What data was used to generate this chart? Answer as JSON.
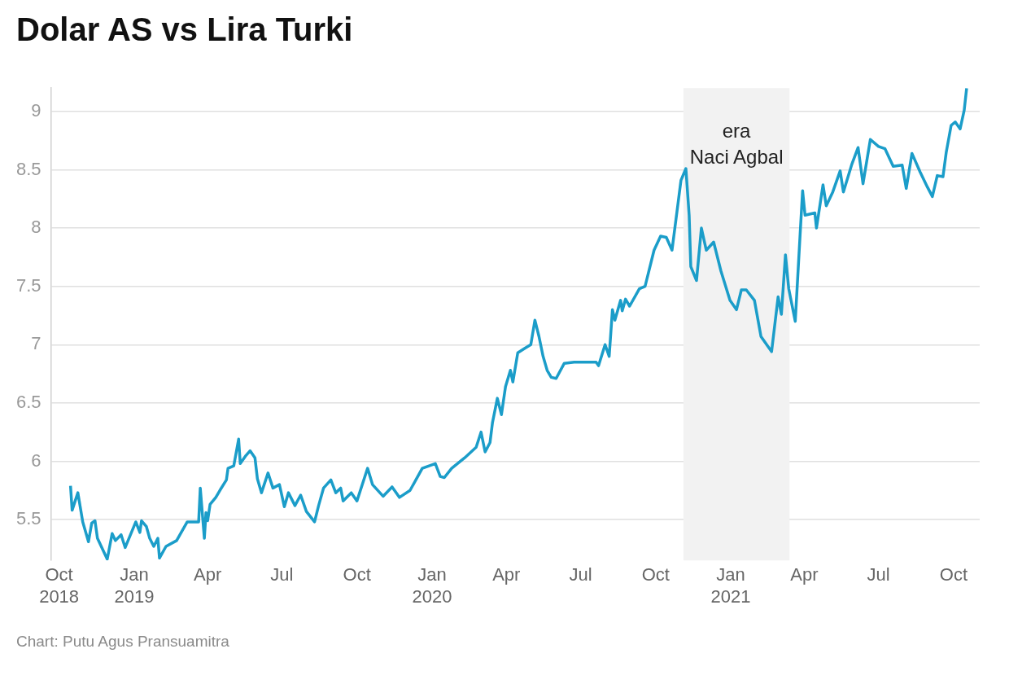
{
  "chart_data": {
    "type": "line",
    "title": "Dolar AS vs Lira Turki",
    "annotations": [
      "Chart: Putu Agus Pransuamitra"
    ],
    "x": [
      "2018-10-15",
      "2018-10-17",
      "2018-10-24",
      "2018-10-30",
      "2018-11-06",
      "2018-11-10",
      "2018-11-14",
      "2018-11-17",
      "2018-11-29",
      "2018-12-05",
      "2018-12-09",
      "2018-12-16",
      "2018-12-21",
      "2019-01-03",
      "2019-01-08",
      "2019-01-10",
      "2019-01-16",
      "2019-01-20",
      "2019-01-25",
      "2019-01-30",
      "2019-02-01",
      "2019-02-09",
      "2019-02-22",
      "2019-03-07",
      "2019-03-21",
      "2019-03-23",
      "2019-03-28",
      "2019-03-30",
      "2019-04-01",
      "2019-04-04",
      "2019-04-11",
      "2019-04-16",
      "2019-04-24",
      "2019-04-26",
      "2019-05-03",
      "2019-05-09",
      "2019-05-11",
      "2019-05-18",
      "2019-05-23",
      "2019-05-29",
      "2019-06-01",
      "2019-06-06",
      "2019-06-14",
      "2019-06-20",
      "2019-06-28",
      "2019-07-04",
      "2019-07-09",
      "2019-07-17",
      "2019-07-24",
      "2019-07-31",
      "2019-08-10",
      "2019-08-15",
      "2019-08-21",
      "2019-08-30",
      "2019-09-05",
      "2019-09-11",
      "2019-09-14",
      "2019-09-24",
      "2019-10-01",
      "2019-10-14",
      "2019-10-20",
      "2019-11-02",
      "2019-11-13",
      "2019-11-22",
      "2019-12-05",
      "2019-12-20",
      "2020-01-05",
      "2020-01-11",
      "2020-01-16",
      "2020-01-25",
      "2020-02-10",
      "2020-02-24",
      "2020-03-01",
      "2020-03-06",
      "2020-03-12",
      "2020-03-15",
      "2020-03-21",
      "2020-03-26",
      "2020-03-31",
      "2020-04-06",
      "2020-04-09",
      "2020-04-15",
      "2020-04-24",
      "2020-05-01",
      "2020-05-06",
      "2020-05-11",
      "2020-05-16",
      "2020-05-21",
      "2020-05-26",
      "2020-06-01",
      "2020-06-11",
      "2020-06-23",
      "2020-07-20",
      "2020-07-23",
      "2020-07-31",
      "2020-08-05",
      "2020-08-09",
      "2020-08-12",
      "2020-08-19",
      "2020-08-21",
      "2020-08-25",
      "2020-08-30",
      "2020-09-11",
      "2020-09-18",
      "2020-09-29",
      "2020-10-07",
      "2020-10-14",
      "2020-10-21",
      "2020-11-01",
      "2020-11-07",
      "2020-11-11",
      "2020-11-13",
      "2020-11-20",
      "2020-11-26",
      "2020-12-02",
      "2020-12-11",
      "2020-12-20",
      "2020-12-31",
      "2021-01-08",
      "2021-01-14",
      "2021-01-20",
      "2021-01-30",
      "2021-02-07",
      "2021-02-14",
      "2021-02-20",
      "2021-02-28",
      "2021-03-04",
      "2021-03-09",
      "2021-03-13",
      "2021-03-21",
      "2021-03-27",
      "2021-03-30",
      "2021-04-02",
      "2021-04-14",
      "2021-04-16",
      "2021-04-24",
      "2021-04-28",
      "2021-05-06",
      "2021-05-15",
      "2021-05-19",
      "2021-05-29",
      "2021-06-06",
      "2021-06-12",
      "2021-06-21",
      "2021-07-01",
      "2021-07-09",
      "2021-07-19",
      "2021-07-30",
      "2021-08-04",
      "2021-08-11",
      "2021-08-21",
      "2021-08-30",
      "2021-09-05",
      "2021-09-11",
      "2021-09-18",
      "2021-09-22",
      "2021-09-28",
      "2021-10-03",
      "2021-10-09",
      "2021-10-14",
      "2021-10-17"
    ],
    "series": [
      {
        "color": "#1b9dc9",
        "values": [
          5.79,
          5.58,
          5.73,
          5.48,
          5.31,
          5.47,
          5.49,
          5.34,
          5.16,
          5.38,
          5.32,
          5.37,
          5.26,
          5.48,
          5.39,
          5.49,
          5.44,
          5.34,
          5.27,
          5.34,
          5.17,
          5.27,
          5.32,
          5.48,
          5.48,
          5.77,
          5.34,
          5.56,
          5.49,
          5.63,
          5.69,
          5.75,
          5.84,
          5.94,
          5.96,
          6.19,
          5.98,
          6.05,
          6.09,
          6.03,
          5.85,
          5.73,
          5.9,
          5.77,
          5.8,
          5.61,
          5.73,
          5.62,
          5.71,
          5.57,
          5.48,
          5.62,
          5.77,
          5.84,
          5.73,
          5.77,
          5.66,
          5.73,
          5.66,
          5.94,
          5.8,
          5.7,
          5.78,
          5.69,
          5.75,
          5.94,
          5.98,
          5.87,
          5.86,
          5.94,
          6.03,
          6.12,
          6.25,
          6.08,
          6.16,
          6.33,
          6.54,
          6.4,
          6.64,
          6.78,
          6.68,
          6.93,
          6.97,
          7.0,
          7.21,
          7.07,
          6.9,
          6.78,
          6.72,
          6.71,
          6.84,
          6.85,
          6.85,
          6.82,
          7.0,
          6.9,
          7.3,
          7.21,
          7.38,
          7.29,
          7.39,
          7.33,
          7.48,
          7.5,
          7.81,
          7.93,
          7.92,
          7.81,
          8.41,
          8.51,
          8.11,
          7.67,
          7.55,
          8.0,
          7.81,
          7.88,
          7.63,
          7.38,
          7.3,
          7.47,
          7.47,
          7.38,
          7.07,
          7.0,
          6.94,
          7.41,
          7.26,
          7.77,
          7.48,
          7.2,
          7.95,
          8.32,
          8.11,
          8.13,
          8.0,
          8.37,
          8.19,
          8.31,
          8.49,
          8.31,
          8.54,
          8.69,
          8.38,
          8.76,
          8.7,
          8.68,
          8.53,
          8.54,
          8.34,
          8.64,
          8.48,
          8.35,
          8.27,
          8.45,
          8.44,
          8.65,
          8.88,
          8.91,
          8.85,
          9.01,
          9.2
        ]
      }
    ],
    "xlim": [
      "2018-09-21",
      "2021-11-02"
    ],
    "xticks": [
      {
        "value": "2018-10-01",
        "label": "Oct 2018"
      },
      {
        "value": "2019-01-01",
        "label": "Jan 2019"
      },
      {
        "value": "2019-04-01",
        "label": "Apr"
      },
      {
        "value": "2019-07-01",
        "label": "Jul"
      },
      {
        "value": "2019-10-01",
        "label": "Oct"
      },
      {
        "value": "2020-01-01",
        "label": "Jan 2020"
      },
      {
        "value": "2020-04-01",
        "label": "Apr"
      },
      {
        "value": "2020-07-01",
        "label": "Jul"
      },
      {
        "value": "2020-10-01",
        "label": "Oct"
      },
      {
        "value": "2021-01-01",
        "label": "Jan 2021"
      },
      {
        "value": "2021-04-01",
        "label": "Apr"
      },
      {
        "value": "2021-07-01",
        "label": "Jul"
      },
      {
        "value": "2021-10-01",
        "label": "Oct"
      }
    ],
    "ylim": [
      5.15,
      9.2
    ],
    "yticks": [
      5.5,
      6,
      6.5,
      7,
      7.5,
      8,
      8.5,
      9
    ],
    "grid": "y",
    "bands": [
      {
        "axis": "x",
        "from": "2020-11-04",
        "to": "2021-03-14",
        "label": "era\nNaci Agbal",
        "color": "#f2f2f2"
      }
    ]
  }
}
